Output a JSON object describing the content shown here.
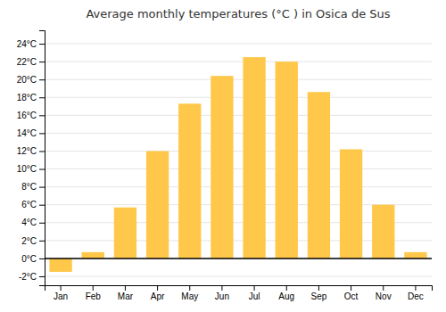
{
  "chart_data": {
    "type": "bar",
    "title": "Average monthly temperatures (°C ) in Osica de Sus",
    "categories": [
      "Jan",
      "Feb",
      "Mar",
      "Apr",
      "May",
      "Jun",
      "Jul",
      "Aug",
      "Sep",
      "Oct",
      "Nov",
      "Dec"
    ],
    "values": [
      -1.5,
      0.7,
      5.7,
      12.0,
      17.3,
      20.4,
      22.5,
      22.0,
      18.6,
      12.2,
      6.0,
      0.7
    ],
    "color": "#FFC84A",
    "ylim": [
      -3,
      25.5
    ],
    "yticks": [
      {
        "value": -2,
        "label": "-2°C"
      },
      {
        "value": 0,
        "label": "0°C"
      },
      {
        "value": 2,
        "label": "2°C"
      },
      {
        "value": 4,
        "label": "4°C"
      },
      {
        "value": 6,
        "label": "6°C"
      },
      {
        "value": 8,
        "label": "8°C"
      },
      {
        "value": 10,
        "label": "10°C"
      },
      {
        "value": 12,
        "label": "12°C"
      },
      {
        "value": 14,
        "label": "14°C"
      },
      {
        "value": 16,
        "label": "16°C"
      },
      {
        "value": 18,
        "label": "18°C"
      },
      {
        "value": 20,
        "label": "20°C"
      },
      {
        "value": 22,
        "label": "22°C"
      },
      {
        "value": 24,
        "label": "24°C"
      }
    ],
    "grid": true
  }
}
